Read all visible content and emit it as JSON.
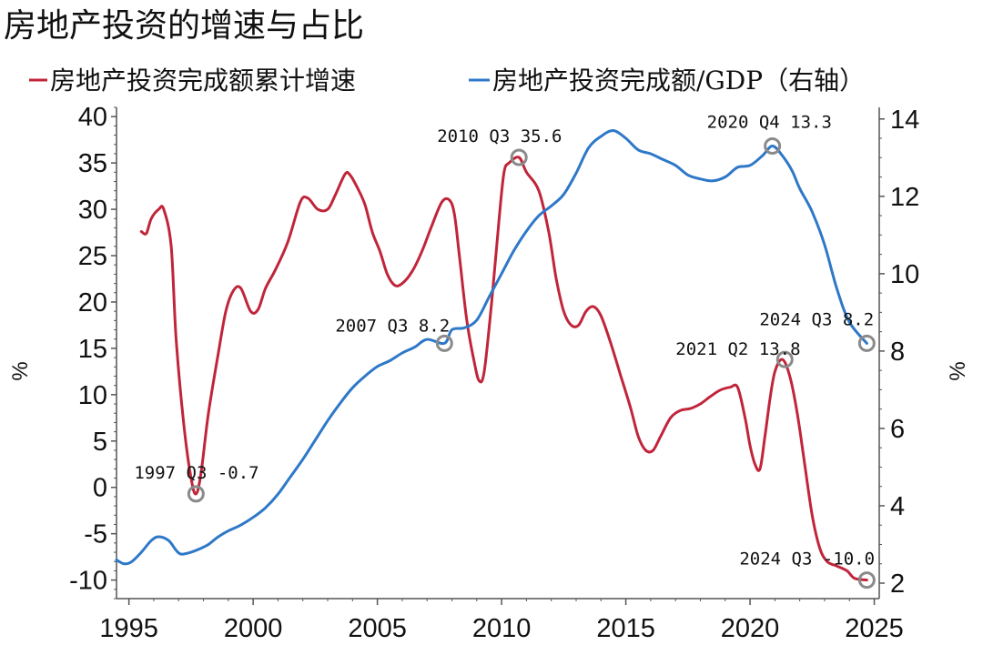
{
  "chart_data": {
    "type": "line",
    "title": "房地产投资的增速与占比",
    "x_range": [
      1994.5,
      2025.2
    ],
    "x_ticks": [
      1995,
      2000,
      2005,
      2010,
      2015,
      2020,
      2025
    ],
    "y_left": {
      "label": "%",
      "range": [
        -12,
        41
      ],
      "ticks": [
        -10,
        -5,
        0,
        5,
        10,
        15,
        20,
        25,
        30,
        35,
        40
      ]
    },
    "y_right": {
      "label": "%",
      "range": [
        1.6,
        14.3
      ],
      "ticks": [
        2,
        4,
        6,
        8,
        10,
        12,
        14
      ]
    },
    "grid": false,
    "legend_position": "top",
    "series": [
      {
        "name": "房地产投资完成额累计增速",
        "axis": "left",
        "color": "#c0253a",
        "points": [
          [
            1995.5,
            27.6
          ],
          [
            1995.7,
            27.4
          ],
          [
            1995.9,
            29.0
          ],
          [
            1996.2,
            30.0
          ],
          [
            1996.4,
            30.0
          ],
          [
            1996.7,
            26.0
          ],
          [
            1996.9,
            16.0
          ],
          [
            1997.2,
            7.0
          ],
          [
            1997.5,
            1.0
          ],
          [
            1997.7,
            -0.7
          ],
          [
            1997.9,
            1.5
          ],
          [
            1998.2,
            8.0
          ],
          [
            1998.6,
            14.5
          ],
          [
            1998.9,
            19.0
          ],
          [
            1999.2,
            21.2
          ],
          [
            1999.5,
            21.5
          ],
          [
            1999.9,
            19.0
          ],
          [
            2000.2,
            19.2
          ],
          [
            2000.5,
            21.5
          ],
          [
            2000.9,
            23.5
          ],
          [
            2001.4,
            26.5
          ],
          [
            2001.9,
            30.8
          ],
          [
            2002.2,
            31.2
          ],
          [
            2002.6,
            30.0
          ],
          [
            2003.0,
            30.0
          ],
          [
            2003.3,
            31.5
          ],
          [
            2003.7,
            33.8
          ],
          [
            2003.9,
            33.7
          ],
          [
            2004.2,
            32.3
          ],
          [
            2004.5,
            30.5
          ],
          [
            2004.8,
            27.5
          ],
          [
            2005.1,
            25.5
          ],
          [
            2005.4,
            23.0
          ],
          [
            2005.7,
            21.8
          ],
          [
            2006.0,
            22.0
          ],
          [
            2006.4,
            23.3
          ],
          [
            2006.8,
            25.5
          ],
          [
            2007.2,
            28.3
          ],
          [
            2007.6,
            30.8
          ],
          [
            2007.9,
            31.0
          ],
          [
            2008.1,
            29.5
          ],
          [
            2008.3,
            25.0
          ],
          [
            2008.6,
            18.0
          ],
          [
            2008.9,
            13.5
          ],
          [
            2009.1,
            11.5
          ],
          [
            2009.3,
            12.5
          ],
          [
            2009.6,
            20.0
          ],
          [
            2009.9,
            29.0
          ],
          [
            2010.1,
            34.0
          ],
          [
            2010.3,
            35.0
          ],
          [
            2010.7,
            35.6
          ],
          [
            2011.0,
            34.0
          ],
          [
            2011.5,
            32.0
          ],
          [
            2011.9,
            27.5
          ],
          [
            2012.2,
            22.5
          ],
          [
            2012.5,
            19.0
          ],
          [
            2012.8,
            17.5
          ],
          [
            2013.1,
            17.5
          ],
          [
            2013.4,
            19.0
          ],
          [
            2013.7,
            19.5
          ],
          [
            2014.0,
            18.5
          ],
          [
            2014.4,
            15.5
          ],
          [
            2014.8,
            12.0
          ],
          [
            2015.2,
            8.5
          ],
          [
            2015.5,
            5.5
          ],
          [
            2015.8,
            4.0
          ],
          [
            2016.1,
            4.0
          ],
          [
            2016.4,
            5.5
          ],
          [
            2016.8,
            7.5
          ],
          [
            2017.2,
            8.3
          ],
          [
            2017.6,
            8.5
          ],
          [
            2018.0,
            9.0
          ],
          [
            2018.4,
            9.8
          ],
          [
            2018.8,
            10.5
          ],
          [
            2019.2,
            10.8
          ],
          [
            2019.5,
            10.8
          ],
          [
            2019.8,
            7.5
          ],
          [
            2020.0,
            4.5
          ],
          [
            2020.2,
            2.5
          ],
          [
            2020.4,
            2.0
          ],
          [
            2020.6,
            5.5
          ],
          [
            2020.8,
            9.5
          ],
          [
            2021.0,
            12.5
          ],
          [
            2021.3,
            13.8
          ],
          [
            2021.6,
            12.0
          ],
          [
            2021.9,
            8.0
          ],
          [
            2022.2,
            2.5
          ],
          [
            2022.5,
            -3.0
          ],
          [
            2022.8,
            -6.5
          ],
          [
            2023.1,
            -8.0
          ],
          [
            2023.5,
            -8.5
          ],
          [
            2023.9,
            -9.0
          ],
          [
            2024.2,
            -9.8
          ],
          [
            2024.7,
            -10.0
          ]
        ]
      },
      {
        "name": "房地产投资完成额/GDP（右轴）",
        "axis": "right",
        "color": "#2e78c8",
        "points": [
          [
            1994.5,
            2.6
          ],
          [
            1994.8,
            2.5
          ],
          [
            1995.1,
            2.55
          ],
          [
            1995.5,
            2.8
          ],
          [
            1995.9,
            3.1
          ],
          [
            1996.2,
            3.2
          ],
          [
            1996.6,
            3.1
          ],
          [
            1996.9,
            2.85
          ],
          [
            1997.1,
            2.75
          ],
          [
            1997.5,
            2.8
          ],
          [
            1997.9,
            2.9
          ],
          [
            1998.2,
            3.0
          ],
          [
            1998.6,
            3.2
          ],
          [
            1999.0,
            3.35
          ],
          [
            1999.5,
            3.5
          ],
          [
            2000.0,
            3.7
          ],
          [
            2000.5,
            3.95
          ],
          [
            2001.0,
            4.3
          ],
          [
            2001.5,
            4.75
          ],
          [
            2002.0,
            5.2
          ],
          [
            2002.5,
            5.7
          ],
          [
            2003.0,
            6.2
          ],
          [
            2003.5,
            6.65
          ],
          [
            2004.0,
            7.05
          ],
          [
            2004.5,
            7.35
          ],
          [
            2005.0,
            7.6
          ],
          [
            2005.5,
            7.75
          ],
          [
            2006.0,
            7.95
          ],
          [
            2006.5,
            8.1
          ],
          [
            2007.0,
            8.3
          ],
          [
            2007.7,
            8.2
          ],
          [
            2008.0,
            8.55
          ],
          [
            2008.5,
            8.6
          ],
          [
            2009.0,
            8.8
          ],
          [
            2009.5,
            9.4
          ],
          [
            2010.0,
            10.0
          ],
          [
            2010.5,
            10.6
          ],
          [
            2011.0,
            11.1
          ],
          [
            2011.5,
            11.5
          ],
          [
            2012.0,
            11.75
          ],
          [
            2012.5,
            12.05
          ],
          [
            2013.0,
            12.6
          ],
          [
            2013.5,
            13.25
          ],
          [
            2014.0,
            13.55
          ],
          [
            2014.5,
            13.7
          ],
          [
            2015.0,
            13.5
          ],
          [
            2015.5,
            13.2
          ],
          [
            2016.0,
            13.1
          ],
          [
            2016.5,
            12.95
          ],
          [
            2017.0,
            12.8
          ],
          [
            2017.5,
            12.55
          ],
          [
            2018.0,
            12.45
          ],
          [
            2018.5,
            12.4
          ],
          [
            2019.0,
            12.5
          ],
          [
            2019.5,
            12.75
          ],
          [
            2020.0,
            12.8
          ],
          [
            2020.5,
            13.05
          ],
          [
            2020.9,
            13.3
          ],
          [
            2021.3,
            13.05
          ],
          [
            2021.7,
            12.65
          ],
          [
            2022.0,
            12.2
          ],
          [
            2022.5,
            11.6
          ],
          [
            2023.0,
            10.75
          ],
          [
            2023.5,
            9.6
          ],
          [
            2024.0,
            8.75
          ],
          [
            2024.7,
            8.2
          ]
        ]
      }
    ],
    "annotations": [
      {
        "text": "1997 Q3 -0.7",
        "x": 1997.7,
        "y": -0.7,
        "axis": "left"
      },
      {
        "text": "2007 Q3 8.2",
        "x": 2007.7,
        "y": 8.2,
        "axis": "right"
      },
      {
        "text": "2010 Q3 35.6",
        "x": 2010.7,
        "y": 35.6,
        "axis": "left"
      },
      {
        "text": "2020 Q4 13.3",
        "x": 2020.9,
        "y": 13.3,
        "axis": "right"
      },
      {
        "text": "2021 Q2 13.8",
        "x": 2021.4,
        "y": 13.8,
        "axis": "left"
      },
      {
        "text": "2024 Q3 8.2",
        "x": 2024.7,
        "y": 8.2,
        "axis": "right"
      },
      {
        "text": "2024 Q3 -10.0",
        "x": 2024.7,
        "y": -10.0,
        "axis": "left"
      }
    ]
  }
}
